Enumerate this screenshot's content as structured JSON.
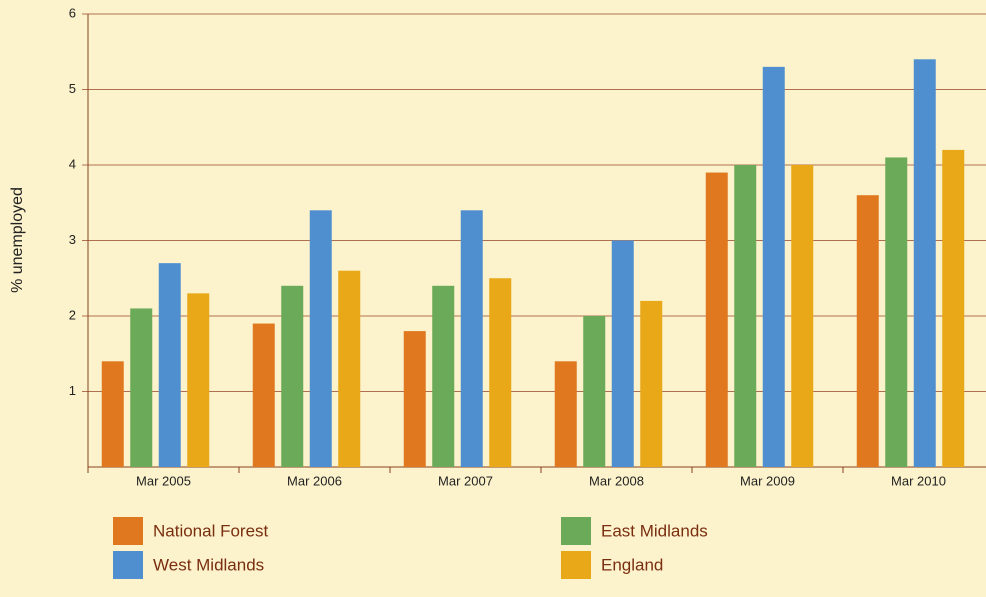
{
  "chart_data": {
    "type": "bar",
    "y_label": "% unemployed",
    "categories": [
      "Mar 2005",
      "Mar 2006",
      "Mar 2007",
      "Mar 2008",
      "Mar 2009",
      "Mar 2010"
    ],
    "series": [
      {
        "name": "National Forest",
        "color": "#e07820",
        "values": [
          1.4,
          1.9,
          1.8,
          1.4,
          3.9,
          3.6
        ]
      },
      {
        "name": "East Midlands",
        "color": "#6aaa58",
        "values": [
          2.1,
          2.4,
          2.4,
          2.0,
          4.0,
          4.1
        ]
      },
      {
        "name": "West Midlands",
        "color": "#4f8fd0",
        "values": [
          2.7,
          3.4,
          3.4,
          3.0,
          5.3,
          5.4
        ]
      },
      {
        "name": "England",
        "color": "#e8a818",
        "values": [
          2.3,
          2.6,
          2.5,
          2.2,
          4.0,
          4.2
        ]
      }
    ],
    "ylim": [
      0,
      6
    ],
    "yticks": [
      1,
      2,
      3,
      4,
      5,
      6
    ],
    "grid": true
  }
}
